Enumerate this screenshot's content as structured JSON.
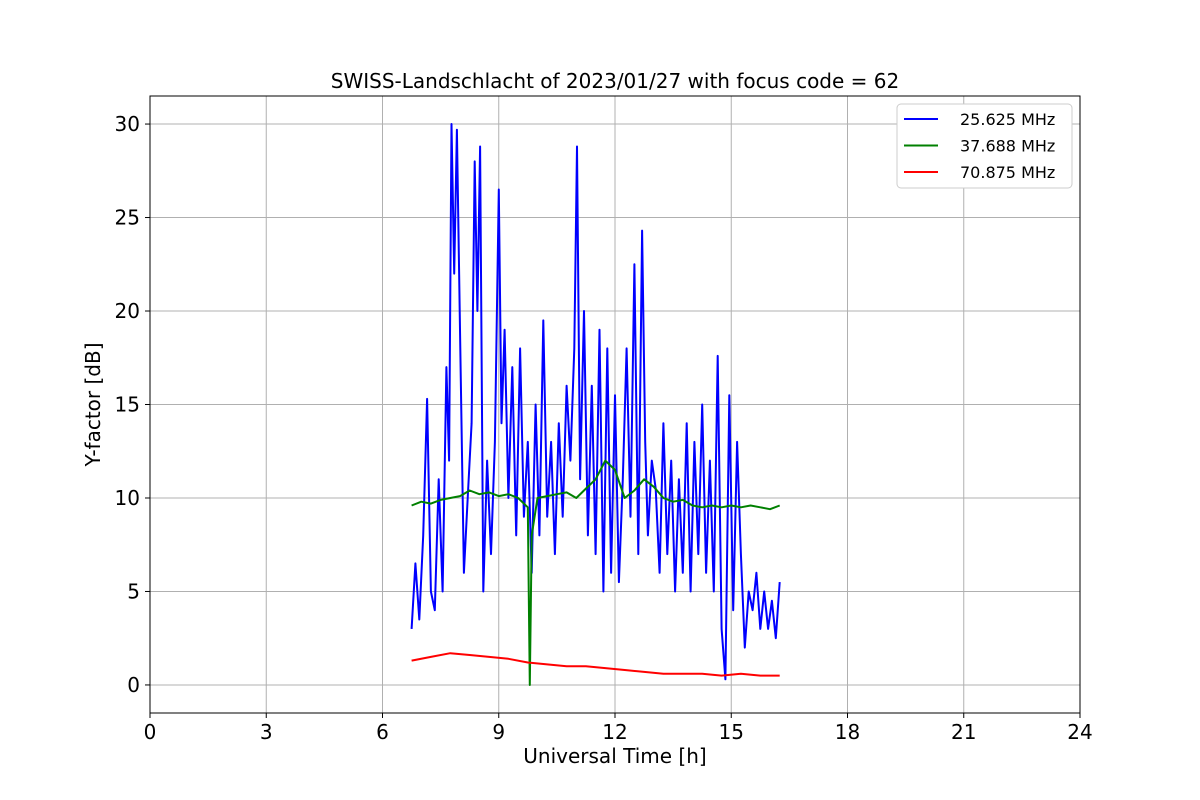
{
  "chart_data": {
    "type": "line",
    "title": "SWISS-Landschlacht of 2023/01/27 with focus code = 62",
    "xlabel": "Universal Time [h]",
    "ylabel": "Y-factor [dB]",
    "xlim": [
      0,
      24
    ],
    "ylim": [
      -1.5,
      31.5
    ],
    "xticks": [
      0,
      3,
      6,
      9,
      12,
      15,
      18,
      21,
      24
    ],
    "yticks": [
      0,
      5,
      10,
      15,
      20,
      25,
      30
    ],
    "grid": true,
    "legend_position": "top-right",
    "series": [
      {
        "name": "25.625 MHz",
        "color": "#0000ff",
        "x": [
          6.75,
          6.85,
          6.95,
          7.05,
          7.15,
          7.25,
          7.35,
          7.45,
          7.55,
          7.65,
          7.72,
          7.78,
          7.85,
          7.92,
          8.0,
          8.1,
          8.2,
          8.3,
          8.38,
          8.45,
          8.52,
          8.6,
          8.7,
          8.8,
          8.9,
          9.0,
          9.07,
          9.15,
          9.25,
          9.35,
          9.45,
          9.55,
          9.65,
          9.75,
          9.85,
          9.95,
          10.05,
          10.15,
          10.25,
          10.35,
          10.45,
          10.55,
          10.65,
          10.75,
          10.85,
          10.95,
          11.02,
          11.1,
          11.2,
          11.3,
          11.4,
          11.5,
          11.6,
          11.7,
          11.8,
          11.9,
          12.0,
          12.1,
          12.2,
          12.3,
          12.4,
          12.5,
          12.6,
          12.7,
          12.78,
          12.85,
          12.95,
          13.05,
          13.15,
          13.25,
          13.35,
          13.45,
          13.55,
          13.65,
          13.75,
          13.85,
          13.95,
          14.05,
          14.15,
          14.25,
          14.35,
          14.45,
          14.55,
          14.65,
          14.75,
          14.85,
          14.95,
          15.05,
          15.15,
          15.25,
          15.35,
          15.45,
          15.55,
          15.65,
          15.75,
          15.85,
          15.95,
          16.05,
          16.15,
          16.25
        ],
        "values": [
          3.0,
          6.5,
          3.5,
          8.0,
          15.3,
          5.0,
          4.0,
          11.0,
          5.0,
          17.0,
          12.0,
          30.0,
          22.0,
          29.7,
          19.0,
          6.0,
          10.0,
          14.0,
          28.0,
          20.0,
          28.8,
          5.0,
          12.0,
          7.0,
          13.0,
          26.5,
          14.0,
          19.0,
          10.0,
          17.0,
          8.0,
          18.0,
          9.0,
          13.0,
          6.0,
          15.0,
          8.0,
          19.5,
          9.0,
          13.0,
          7.0,
          14.0,
          9.0,
          16.0,
          12.0,
          18.0,
          28.8,
          11.0,
          20.0,
          8.0,
          16.0,
          7.0,
          19.0,
          5.0,
          18.0,
          6.0,
          15.5,
          5.5,
          11.0,
          18.0,
          9.0,
          22.5,
          7.0,
          24.3,
          13.0,
          8.0,
          12.0,
          10.5,
          6.0,
          14.0,
          7.0,
          12.0,
          5.0,
          11.0,
          6.0,
          14.0,
          5.0,
          13.0,
          7.0,
          15.0,
          6.0,
          12.0,
          5.0,
          17.6,
          3.0,
          0.3,
          15.5,
          4.0,
          13.0,
          7.0,
          2.0,
          5.0,
          4.0,
          6.0,
          3.0,
          5.0,
          3.0,
          4.5,
          2.5,
          5.5
        ]
      },
      {
        "name": "37.688 MHz",
        "color": "#008000",
        "x": [
          6.75,
          7.0,
          7.25,
          7.5,
          7.75,
          8.0,
          8.25,
          8.5,
          8.75,
          9.0,
          9.25,
          9.5,
          9.75,
          9.8,
          9.85,
          10.0,
          10.25,
          10.5,
          10.75,
          11.0,
          11.25,
          11.5,
          11.75,
          12.0,
          12.25,
          12.5,
          12.75,
          13.0,
          13.25,
          13.5,
          13.75,
          14.0,
          14.25,
          14.5,
          14.75,
          15.0,
          15.25,
          15.5,
          15.75,
          16.0,
          16.25
        ],
        "values": [
          9.6,
          9.8,
          9.7,
          9.9,
          10.0,
          10.1,
          10.4,
          10.2,
          10.3,
          10.1,
          10.2,
          10.0,
          9.5,
          0.0,
          8.0,
          10.0,
          10.1,
          10.2,
          10.3,
          10.0,
          10.5,
          11.0,
          12.0,
          11.5,
          10.0,
          10.4,
          11.0,
          10.6,
          10.0,
          9.8,
          9.9,
          9.6,
          9.5,
          9.6,
          9.5,
          9.6,
          9.5,
          9.6,
          9.5,
          9.4,
          9.6
        ]
      },
      {
        "name": "70.875 MHz",
        "color": "#ff0000",
        "x": [
          6.75,
          7.25,
          7.75,
          8.25,
          8.75,
          9.25,
          9.75,
          10.25,
          10.75,
          11.25,
          11.75,
          12.25,
          12.75,
          13.25,
          13.75,
          14.25,
          14.75,
          15.25,
          15.75,
          16.25
        ],
        "values": [
          1.3,
          1.5,
          1.7,
          1.6,
          1.5,
          1.4,
          1.2,
          1.1,
          1.0,
          1.0,
          0.9,
          0.8,
          0.7,
          0.6,
          0.6,
          0.6,
          0.5,
          0.6,
          0.5,
          0.5
        ]
      }
    ]
  }
}
